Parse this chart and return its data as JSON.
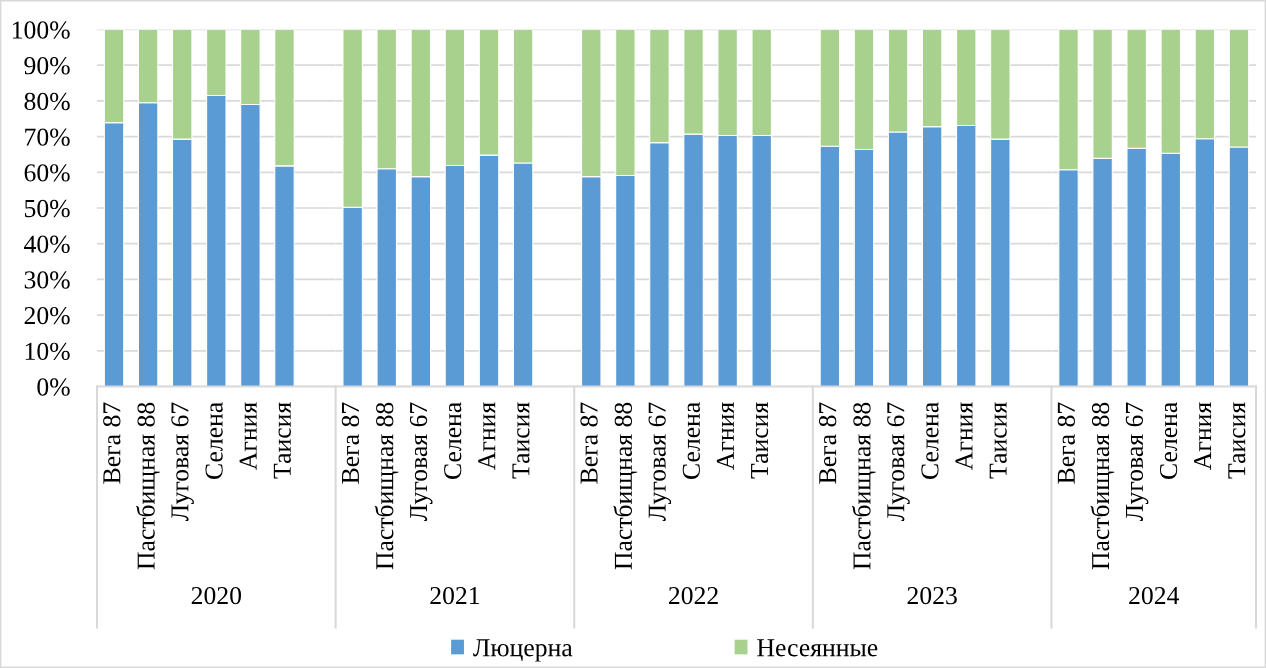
{
  "chart_data": [
    {
      "type": "bar",
      "stacked": true,
      "xlabel": "2020",
      "categories": [
        "Вега 87",
        "Пастбищная 88",
        "Луговая 67",
        "Селена",
        "Агния",
        "Таисия",
        null
      ],
      "series": [
        {
          "name": "Люцерна",
          "color": "#5b9bd5",
          "values": [
            73.9,
            79.5,
            69.3,
            81.5,
            79.0,
            61.8,
            null
          ]
        },
        {
          "name": "Несеянные",
          "color": "#a9d18e",
          "values": [
            26.1,
            20.5,
            30.7,
            18.5,
            21.0,
            38.2,
            null
          ]
        }
      ],
      "ylim": [
        0,
        100
      ],
      "yticks": [
        {
          "value": 0,
          "label": "0%"
        },
        {
          "value": 10,
          "label": "10%"
        },
        {
          "value": 20,
          "label": "20%"
        },
        {
          "value": 30,
          "label": "30%"
        },
        {
          "value": 40,
          "label": "40%"
        },
        {
          "value": 50,
          "label": "50%"
        },
        {
          "value": 60,
          "label": "60%"
        },
        {
          "value": 70,
          "label": "70%"
        },
        {
          "value": 80,
          "label": "80%"
        },
        {
          "value": 90,
          "label": "90%"
        },
        {
          "value": 100,
          "label": "100%"
        }
      ],
      "grid": "y",
      "legend": "bottom"
    },
    {
      "type": "bar",
      "stacked": true,
      "xlabel": "2021",
      "categories": [
        "Вега 87",
        "Пастбищная 88",
        "Луговая 67",
        "Селена",
        "Агния",
        "Таисия",
        null
      ],
      "series": [
        {
          "color": "#5b9bd5",
          "values": [
            50.2,
            61.0,
            58.8,
            61.9,
            64.8,
            62.6,
            null
          ]
        },
        {
          "color": "#a9d18e",
          "values": [
            49.8,
            39.0,
            41.2,
            38.1,
            35.2,
            37.4,
            null
          ]
        }
      ],
      "ylim": [
        0,
        100
      ],
      "yticks": [
        {
          "value": 0,
          "label": null
        },
        {
          "value": 10,
          "label": null
        },
        {
          "value": 20,
          "label": null
        },
        {
          "value": 30,
          "label": null
        },
        {
          "value": 40,
          "label": null
        },
        {
          "value": 50,
          "label": null
        },
        {
          "value": 60,
          "label": null
        },
        {
          "value": 70,
          "label": null
        },
        {
          "value": 80,
          "label": null
        },
        {
          "value": 90,
          "label": null
        },
        {
          "value": 100,
          "label": null
        }
      ],
      "grid": "y",
      "tick_labels": "x"
    },
    {
      "type": "bar",
      "stacked": true,
      "xlabel": "2022",
      "categories": [
        "Вега 87",
        "Пастбищная 88",
        "Луговая 67",
        "Селена",
        "Агния",
        "Таисия",
        null
      ],
      "series": [
        {
          "color": "#5b9bd5",
          "values": [
            58.8,
            59.1,
            68.3,
            70.7,
            70.3,
            70.3,
            null
          ]
        },
        {
          "color": "#a9d18e",
          "values": [
            41.2,
            40.9,
            31.7,
            29.3,
            29.7,
            29.7,
            null
          ]
        }
      ],
      "ylim": [
        0,
        100
      ],
      "yticks": [
        {
          "value": 0,
          "label": null
        },
        {
          "value": 10,
          "label": null
        },
        {
          "value": 20,
          "label": null
        },
        {
          "value": 30,
          "label": null
        },
        {
          "value": 40,
          "label": null
        },
        {
          "value": 50,
          "label": null
        },
        {
          "value": 60,
          "label": null
        },
        {
          "value": 70,
          "label": null
        },
        {
          "value": 80,
          "label": null
        },
        {
          "value": 90,
          "label": null
        },
        {
          "value": 100,
          "label": null
        }
      ],
      "grid": "y",
      "tick_labels": "x"
    },
    {
      "type": "bar",
      "stacked": true,
      "xlabel": "2023",
      "categories": [
        "Вега 87",
        "Пастбищная 88",
        "Луговая 67",
        "Селена",
        "Агния",
        "Таисия",
        null
      ],
      "series": [
        {
          "color": "#5b9bd5",
          "values": [
            67.3,
            66.4,
            71.3,
            72.8,
            73.1,
            69.3,
            null
          ]
        },
        {
          "color": "#a9d18e",
          "values": [
            32.7,
            33.6,
            28.7,
            27.2,
            26.9,
            30.7,
            null
          ]
        }
      ],
      "ylim": [
        0,
        100
      ],
      "yticks": [
        {
          "value": 0,
          "label": null
        },
        {
          "value": 10,
          "label": null
        },
        {
          "value": 20,
          "label": null
        },
        {
          "value": 30,
          "label": null
        },
        {
          "value": 40,
          "label": null
        },
        {
          "value": 50,
          "label": null
        },
        {
          "value": 60,
          "label": null
        },
        {
          "value": 70,
          "label": null
        },
        {
          "value": 80,
          "label": null
        },
        {
          "value": 90,
          "label": null
        },
        {
          "value": 100,
          "label": null
        }
      ],
      "grid": "y",
      "tick_labels": "x"
    },
    {
      "type": "bar",
      "stacked": true,
      "xlabel": "2024",
      "categories": [
        "Вега 87",
        "Пастбищная 88",
        "Луговая 67",
        "Селена",
        "Агния",
        "Таисия"
      ],
      "series": [
        {
          "color": "#5b9bd5",
          "values": [
            60.7,
            63.9,
            66.7,
            65.3,
            69.4,
            67.1
          ]
        },
        {
          "color": "#a9d18e",
          "values": [
            39.3,
            36.1,
            33.3,
            34.7,
            30.6,
            32.9
          ]
        }
      ],
      "ylim": [
        0,
        100
      ],
      "yticks": [
        {
          "value": 0,
          "label": null
        },
        {
          "value": 10,
          "label": null
        },
        {
          "value": 20,
          "label": null
        },
        {
          "value": 30,
          "label": null
        },
        {
          "value": 40,
          "label": null
        },
        {
          "value": 50,
          "label": null
        },
        {
          "value": 60,
          "label": null
        },
        {
          "value": 70,
          "label": null
        },
        {
          "value": 80,
          "label": null
        },
        {
          "value": 90,
          "label": null
        },
        {
          "value": 100,
          "label": null
        }
      ],
      "grid": "y",
      "tick_labels": "x"
    }
  ]
}
